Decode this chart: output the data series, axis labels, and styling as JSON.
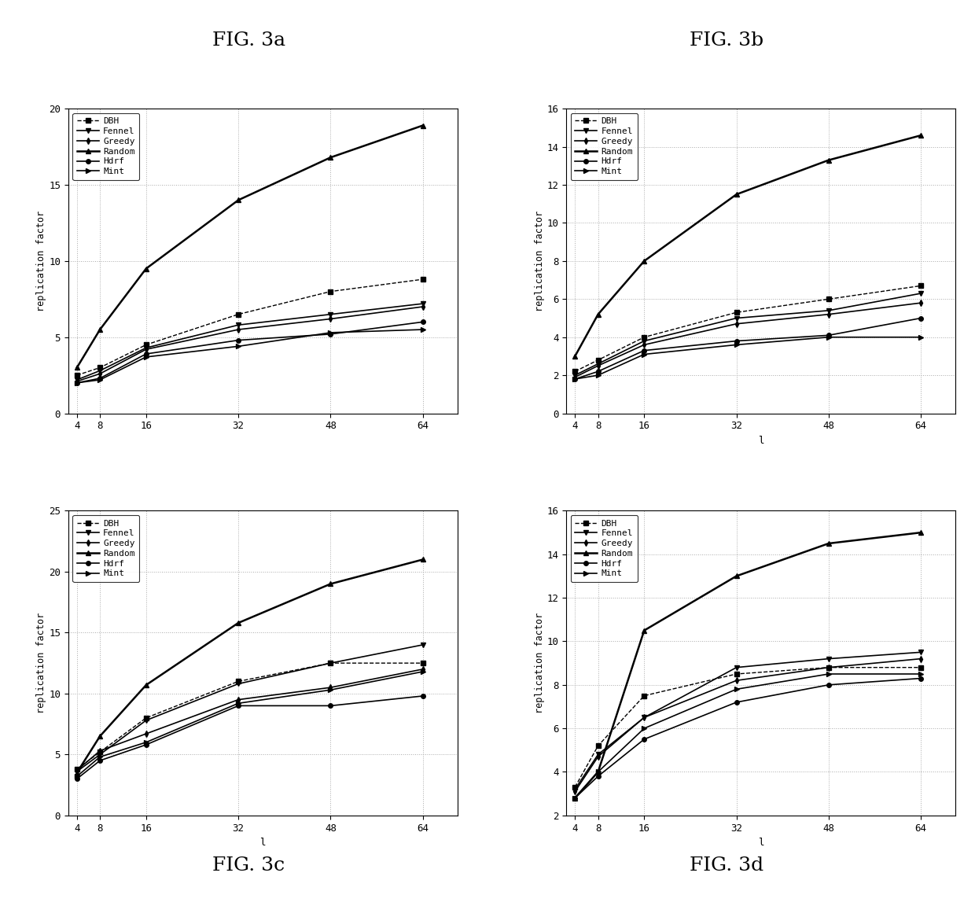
{
  "x": [
    4,
    8,
    16,
    32,
    48,
    64
  ],
  "titles": [
    "FIG. 3a",
    "FIG. 3b",
    "FIG. 3c",
    "FIG. 3d"
  ],
  "xlabel": "l",
  "ylabel": "replication factor",
  "series": [
    "DBH",
    "Fennel",
    "Greedy",
    "Random",
    "Hdrf",
    "Mint"
  ],
  "subplot_a": {
    "Random": [
      3.0,
      5.5,
      9.5,
      14.0,
      16.8,
      18.9
    ],
    "DBH": [
      2.5,
      3.0,
      4.5,
      6.5,
      8.0,
      8.8
    ],
    "Fennel": [
      2.2,
      2.8,
      4.3,
      5.8,
      6.5,
      7.2
    ],
    "Greedy": [
      2.1,
      2.6,
      4.2,
      5.5,
      6.2,
      7.0
    ],
    "Hdrf": [
      2.0,
      2.3,
      3.9,
      4.8,
      5.2,
      6.0
    ],
    "Mint": [
      2.0,
      2.2,
      3.7,
      4.4,
      5.3,
      5.5
    ]
  },
  "ylim_a": [
    0,
    20
  ],
  "yticks_a": [
    0,
    5,
    10,
    15,
    20
  ],
  "subplot_b": {
    "Random": [
      3.0,
      5.2,
      8.0,
      11.5,
      13.3,
      14.6
    ],
    "DBH": [
      2.2,
      2.8,
      4.0,
      5.3,
      6.0,
      6.7
    ],
    "Fennel": [
      2.0,
      2.6,
      3.8,
      5.0,
      5.4,
      6.3
    ],
    "Greedy": [
      1.9,
      2.5,
      3.6,
      4.7,
      5.2,
      5.8
    ],
    "Hdrf": [
      1.8,
      2.2,
      3.3,
      3.8,
      4.1,
      5.0
    ],
    "Mint": [
      1.8,
      2.0,
      3.1,
      3.6,
      4.0,
      4.0
    ]
  },
  "ylim_b": [
    0,
    16
  ],
  "yticks_b": [
    0,
    2,
    4,
    6,
    8,
    10,
    12,
    14,
    16
  ],
  "subplot_c": {
    "Random": [
      3.5,
      6.5,
      10.7,
      15.8,
      19.0,
      21.0
    ],
    "Fennel": [
      3.6,
      5.0,
      7.8,
      10.8,
      12.5,
      14.0
    ],
    "DBH": [
      3.8,
      5.2,
      8.0,
      11.0,
      12.5,
      12.5
    ],
    "Greedy": [
      3.7,
      5.3,
      6.7,
      9.5,
      10.5,
      12.0
    ],
    "Mint": [
      3.2,
      4.8,
      6.0,
      9.2,
      10.3,
      11.8
    ],
    "Hdrf": [
      3.0,
      4.5,
      5.8,
      9.0,
      9.0,
      9.8
    ]
  },
  "ylim_c": [
    0,
    25
  ],
  "yticks_c": [
    0,
    5,
    10,
    15,
    20,
    25
  ],
  "subplot_d": {
    "Random": [
      2.8,
      4.0,
      10.5,
      13.0,
      14.5,
      15.0
    ],
    "Fennel": [
      3.2,
      4.8,
      6.5,
      8.8,
      9.2,
      9.5
    ],
    "Greedy": [
      3.1,
      4.7,
      6.5,
      8.2,
      8.8,
      9.2
    ],
    "DBH": [
      3.3,
      5.2,
      7.5,
      8.5,
      8.8,
      8.8
    ],
    "Mint": [
      2.8,
      4.0,
      6.0,
      7.8,
      8.5,
      8.5
    ],
    "Hdrf": [
      2.8,
      3.8,
      5.5,
      7.2,
      8.0,
      8.3
    ]
  },
  "ylim_d": [
    2,
    16
  ],
  "yticks_d": [
    2,
    4,
    6,
    8,
    10,
    12,
    14,
    16
  ],
  "markers": {
    "DBH": "s",
    "Fennel": "v",
    "Greedy": "d",
    "Random": "^",
    "Hdrf": "o",
    "Mint": ">"
  },
  "linestyles": {
    "DBH": "--",
    "Fennel": "-",
    "Greedy": "-",
    "Random": "-",
    "Hdrf": "-",
    "Mint": "-"
  },
  "linewidths": {
    "DBH": 1.0,
    "Fennel": 1.2,
    "Greedy": 1.2,
    "Random": 1.8,
    "Hdrf": 1.2,
    "Mint": 1.2
  },
  "color": "#000000",
  "background_color": "#ffffff",
  "grid_color": "#aaaaaa"
}
